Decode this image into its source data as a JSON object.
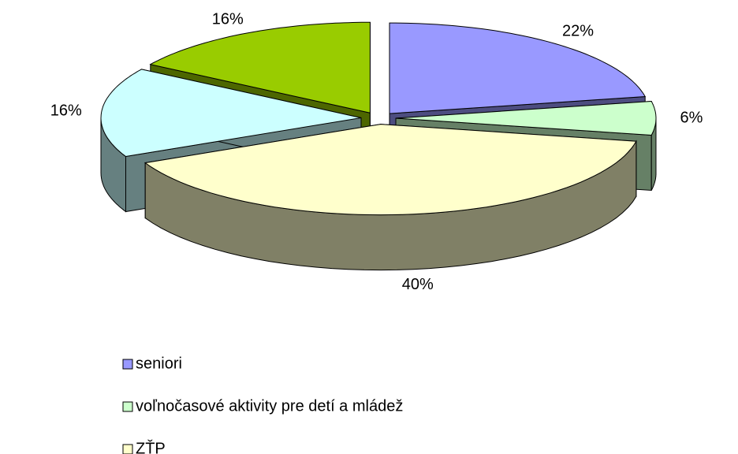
{
  "chart_data": {
    "type": "pie3d",
    "categories": [
      "seniori",
      "voľnočasové aktivity pre detí a mládež",
      "ZŤP",
      null,
      null
    ],
    "values": [
      22,
      6,
      40,
      16,
      16
    ],
    "value_labels": [
      "22%",
      "6%",
      "40%",
      "16%",
      "16%"
    ],
    "colors": [
      "#9999ff",
      "#ccffcc",
      "#ffffcc",
      "#ccffff",
      "#99cc00"
    ],
    "legend": "bottom"
  }
}
